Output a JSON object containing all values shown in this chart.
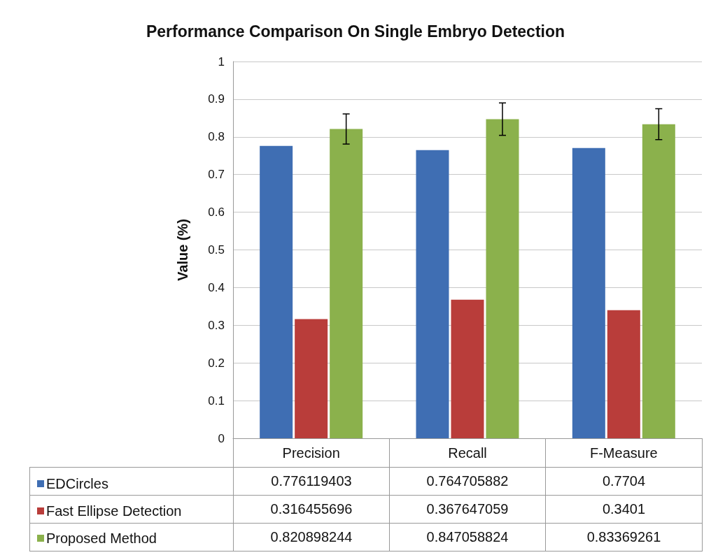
{
  "chart_data": {
    "type": "bar",
    "title": "Performance Comparison On Single Embryo Detection",
    "ylabel": "Value (%)",
    "categories": [
      "Precision",
      "Recall",
      "F-Measure"
    ],
    "series": [
      {
        "name": "EDCircles",
        "color": "#3f6eb3",
        "values": [
          0.776119403,
          0.764705882,
          0.7704
        ]
      },
      {
        "name": "Fast Ellipse Detection",
        "color": "#b93d3a",
        "values": [
          0.316455696,
          0.367647059,
          0.3401
        ]
      },
      {
        "name": "Proposed Method",
        "color": "#8bb14c",
        "values": [
          0.820898244,
          0.847058824,
          0.83369261
        ],
        "errors": [
          0.04,
          0.043,
          0.041
        ]
      }
    ],
    "ylim": [
      0,
      1
    ],
    "yticks": [
      0,
      0.1,
      0.2,
      0.3,
      0.4,
      0.5,
      0.6,
      0.7,
      0.8,
      0.9,
      1
    ],
    "grid": "y",
    "legend": "bottom left",
    "data_labels": true
  }
}
